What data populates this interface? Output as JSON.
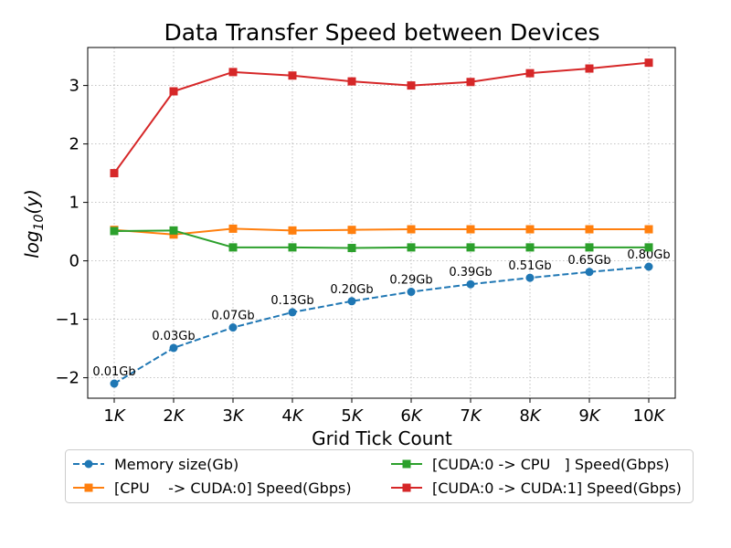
{
  "chart_data": {
    "type": "line",
    "title": "Data Transfer Speed between Devices",
    "xlabel": "Grid Tick Count",
    "ylabel": "log10(y)",
    "categories": [
      "1K",
      "2K",
      "3K",
      "4K",
      "5K",
      "6K",
      "7K",
      "8K",
      "9K",
      "10K"
    ],
    "yticks": [
      -2,
      -1,
      0,
      1,
      2,
      3
    ],
    "ylim": [
      -2.35,
      3.65
    ],
    "grid": true,
    "legend_position": "bottom",
    "series": [
      {
        "name": "Memory size(Gb)",
        "color": "#1f77b4",
        "marker": "circle",
        "line_style": "dashed",
        "values": [
          -2.1,
          -1.49,
          -1.14,
          -0.88,
          -0.69,
          -0.53,
          -0.4,
          -0.29,
          -0.19,
          -0.1
        ],
        "labels": [
          "0.01Gb",
          "0.03Gb",
          "0.07Gb",
          "0.13Gb",
          "0.20Gb",
          "0.29Gb",
          "0.39Gb",
          "0.51Gb",
          "0.65Gb",
          "0.80Gb"
        ]
      },
      {
        "name": "[CPU    -> CUDA:0] Speed(Gbps)",
        "color": "#ff7f0e",
        "marker": "square",
        "line_style": "solid",
        "values": [
          0.53,
          0.45,
          0.55,
          0.52,
          0.53,
          0.54,
          0.54,
          0.54,
          0.54,
          0.54
        ]
      },
      {
        "name": "[CUDA:0 -> CPU   ] Speed(Gbps)",
        "color": "#2ca02c",
        "marker": "square",
        "line_style": "solid",
        "values": [
          0.51,
          0.52,
          0.23,
          0.23,
          0.22,
          0.23,
          0.23,
          0.23,
          0.23,
          0.23
        ]
      },
      {
        "name": "[CUDA:0 -> CUDA:1] Speed(Gbps)",
        "color": "#d62728",
        "marker": "square",
        "line_style": "solid",
        "values": [
          1.5,
          2.9,
          3.23,
          3.17,
          3.07,
          3.0,
          3.06,
          3.21,
          3.29,
          3.39
        ]
      }
    ]
  }
}
